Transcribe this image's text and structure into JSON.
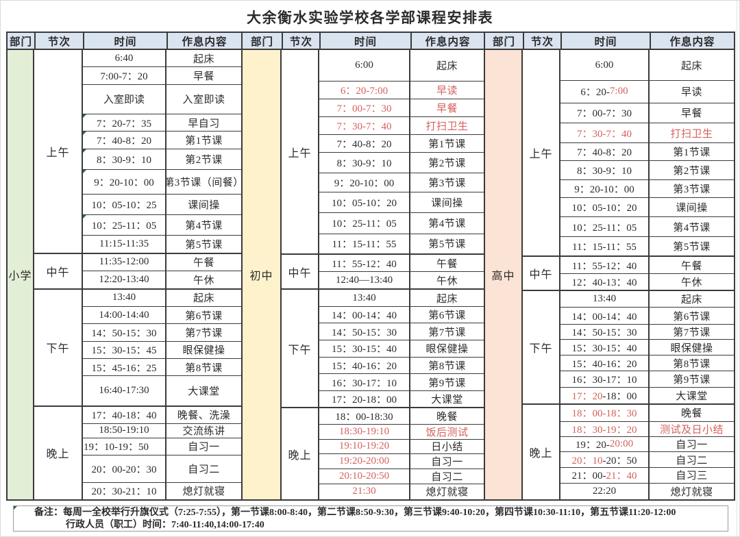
{
  "title": "大余衡水实验学校各学部课程安排表",
  "columns": [
    "部门",
    "节次",
    "时间",
    "作息内容"
  ],
  "colors": {
    "header_bg": "#dae3f0",
    "primary_dept_bg": "#e3eed7",
    "junior_dept_bg": "#fdf2cb",
    "senior_dept_bg": "#fbe3d5",
    "red_text": "#d4605c",
    "border": "#3a3a3a"
  },
  "sections": [
    {
      "key": "primary",
      "department": "小学",
      "bg": "#e3eed7",
      "groups": [
        {
          "period": "上午",
          "rows": [
            {
              "t": "6:40",
              "c": "起床"
            },
            {
              "t": "7:00-7：20",
              "c": "早餐"
            },
            {
              "t": "入室即读",
              "c": "入室即读",
              "h": 1.75
            },
            {
              "t": "7：20-7：35",
              "c": "早自习",
              "m": true
            },
            {
              "t": "7：40-8：20",
              "c": "第1节课",
              "m": true
            },
            {
              "t": "8：30-9：10",
              "c": "第2节课",
              "h": 1.2,
              "m": true
            },
            {
              "t": "9：20-10：00",
              "c": "第3节课（间餐）",
              "h": 1.45,
              "m": true
            },
            {
              "t": "10：05-10：25",
              "c": "课间操",
              "h": 1.2
            },
            {
              "t": "10：25-11：05",
              "c": "第4节课",
              "h": 1.2,
              "m": true
            },
            {
              "t": "11:15-11:35",
              "c": "第5节课"
            }
          ]
        },
        {
          "period": "中午",
          "rows": [
            {
              "t": "11:35-12:00",
              "c": "午餐"
            },
            {
              "t": "12:20-13:40",
              "c": "午休"
            }
          ]
        },
        {
          "period": "下午",
          "rows": [
            {
              "t": "13:40",
              "c": "起床"
            },
            {
              "t": "14:00-14:40",
              "c": "第6节课"
            },
            {
              "t": "14：50-15：30",
              "c": "第7节课"
            },
            {
              "t": "15：30-15：45",
              "c": "眼保健操"
            },
            {
              "t": "15：45-16：25",
              "c": "第8节课"
            },
            {
              "t": "16:40-17:30",
              "c": "大课堂",
              "h": 1.75
            }
          ]
        },
        {
          "period": "晚上",
          "rows": [
            {
              "t": "17：40-18：40",
              "c": "晚餐、洗澡"
            },
            {
              "t": "18:50-19:10",
              "c": "交流练讲",
              "h": 0.8
            },
            {
              "t": "19：10-19：50",
              "c": "自习一",
              "al": "left"
            },
            {
              "t": "20：00-20：30",
              "c": "自习二",
              "h": 1.6
            },
            {
              "t": "20：30-21：10",
              "c": "熄灯就寝"
            }
          ]
        }
      ]
    },
    {
      "key": "junior",
      "department": "初中",
      "bg": "#fdf2cb",
      "groups": [
        {
          "period": "上午",
          "rows": [
            {
              "t": "6:00",
              "c": "起床",
              "h": 1.8
            },
            {
              "t": "6：20-7:00",
              "c": "早读",
              "tr": true,
              "cr": true
            },
            {
              "t": "7：00-7：30",
              "c": "早餐",
              "tr": true,
              "cr": true
            },
            {
              "t": "7：30-7：40",
              "c": "打扫卫生",
              "tr": true,
              "cr": true
            },
            {
              "t": "7：40-8：20",
              "c": "第1节课"
            },
            {
              "t": "8：30-9：10",
              "c": "第2节课",
              "h": 1.15
            },
            {
              "t": "9：20-10：00",
              "c": "第3节课",
              "h": 1.1
            },
            {
              "t": "10：05-10：20",
              "c": "课间操",
              "h": 1.15
            },
            {
              "t": "10：25-11：05",
              "c": "第4节课",
              "h": 1.2
            },
            {
              "t": "11：15-11：55",
              "c": "第5节课",
              "h": 1.15
            }
          ]
        },
        {
          "period": "中午",
          "rows": [
            {
              "t": "11：55-12：40",
              "c": "午餐",
              "h": 0.95
            },
            {
              "t": "12:40—13:40",
              "c": "午休",
              "h": 0.95
            }
          ]
        },
        {
          "period": "下午",
          "rows": [
            {
              "t": "13:40",
              "c": "起床",
              "h": 0.95
            },
            {
              "t": "14：00-14：40",
              "c": "第6节课",
              "h": 0.95
            },
            {
              "t": "14：50-15：30",
              "c": "第7节课",
              "h": 0.95
            },
            {
              "t": "15：30-15：40",
              "c": "眼保健操",
              "h": 0.95
            },
            {
              "t": "15：40-16：20",
              "c": "第8节课",
              "h": 0.95
            },
            {
              "t": "16：30-17：10",
              "c": "第9节课",
              "h": 0.95
            },
            {
              "t": "17：20-18：00",
              "c": "大课堂",
              "h": 0.95
            }
          ]
        },
        {
          "period": "晚上",
          "rows": [
            {
              "t": "18：00-18:30",
              "c": "晚餐",
              "h": 0.9
            },
            {
              "t": "18:30-19:10",
              "c": "饭后测试",
              "tr": true,
              "cr": true,
              "h": 0.85
            },
            {
              "t": "19:10-19:20",
              "c": "日小结",
              "tr": true,
              "h": 0.8
            },
            {
              "t": "19:20-20:00",
              "c": "自习一",
              "tr": true,
              "h": 0.85
            },
            {
              "t": "20:10-20:50",
              "c": "自习二",
              "tr": true,
              "h": 0.85
            },
            {
              "t": "21:30",
              "c": "熄灯就寝",
              "tr": true,
              "h": 0.9
            }
          ]
        }
      ]
    },
    {
      "key": "senior",
      "department": "高中",
      "bg": "#fbe3d5",
      "groups": [
        {
          "period": "上午",
          "rows": [
            {
              "t": "6:00",
              "c": "起床",
              "h": 1.8
            },
            {
              "seg": [
                [
                  "6：20-",
                  "k"
                ],
                [
                  "7:00",
                  "r"
                ]
              ],
              "c": "早读",
              "h": 1.3
            },
            {
              "t": "7：00-7：30",
              "c": "早餐",
              "h": 1.15
            },
            {
              "t": "7：30-7：40",
              "c": "打扫卫生",
              "tr": true,
              "cr": true,
              "h": 1.15
            },
            {
              "t": "7：40-8：20",
              "c": "第1节课"
            },
            {
              "t": "8：30-9：10",
              "c": "第2节课",
              "h": 1.1
            },
            {
              "t": "9：20-10：00",
              "c": "第3节课",
              "h": 1.05
            },
            {
              "t": "10：05-10：20",
              "c": "课间操",
              "h": 1.1
            },
            {
              "t": "10：25-11：05",
              "c": "第4节课",
              "h": 1.15
            },
            {
              "t": "11：15-11：55",
              "c": "第5节课",
              "h": 1.1
            }
          ]
        },
        {
          "period": "中午",
          "rows": [
            {
              "t": "11：55-12：40",
              "c": "午餐",
              "h": 0.95
            },
            {
              "t": "12：40-13：40",
              "c": "午休",
              "h": 0.95
            }
          ]
        },
        {
          "period": "下午",
          "rows": [
            {
              "t": "13:40",
              "c": "起床",
              "h": 0.95
            },
            {
              "t": "14：00-14：40",
              "c": "第6节课",
              "h": 0.95
            },
            {
              "t": "14：50-15：30",
              "c": "第7节课",
              "h": 0.9
            },
            {
              "t": "15：30-15：40",
              "c": "眼保健操",
              "h": 0.9
            },
            {
              "t": "15：40-16：20",
              "c": "第8节课",
              "h": 0.9
            },
            {
              "t": "16：30-17：10",
              "c": "第9节课",
              "h": 0.95
            },
            {
              "seg": [
                [
                  "17：20",
                  "r"
                ],
                [
                  "-18：00",
                  "k"
                ]
              ],
              "c": "大课堂",
              "h": 0.95
            }
          ]
        },
        {
          "period": "晚上",
          "rows": [
            {
              "t": "18：00-18：30",
              "c": "晚餐",
              "tr": true,
              "h": 0.95
            },
            {
              "t": "18：30-19：20",
              "c": "测试及日小结",
              "tr": true,
              "cr": true,
              "h": 0.9
            },
            {
              "seg": [
                [
                  "19：20-",
                  "k"
                ],
                [
                  "20:00",
                  "r"
                ]
              ],
              "c": "自习一",
              "h": 0.85
            },
            {
              "seg": [
                [
                  "20：10",
                  "r"
                ],
                [
                  "-20：50",
                  "k"
                ]
              ],
              "c": "自习二",
              "h": 0.9
            },
            {
              "seg": [
                [
                  "21：00-",
                  "k"
                ],
                [
                  "21：40",
                  "r"
                ]
              ],
              "c": "自习三",
              "h": 0.9
            },
            {
              "t": "22:20",
              "c": "熄灯就寝",
              "h": 0.95
            }
          ]
        }
      ]
    }
  ],
  "notes": {
    "line1": "备注：每周一全校举行升旗仪式（7:25-7:55），第一节课8:00-8:40，第二节课8:50-9:30，第三节课9:40-10:20，第四节课10:30-11:10，第五节课11:20-12:00",
    "line2": "行政人员（职工）时间：7:40-11:40,14:00-17:40"
  }
}
